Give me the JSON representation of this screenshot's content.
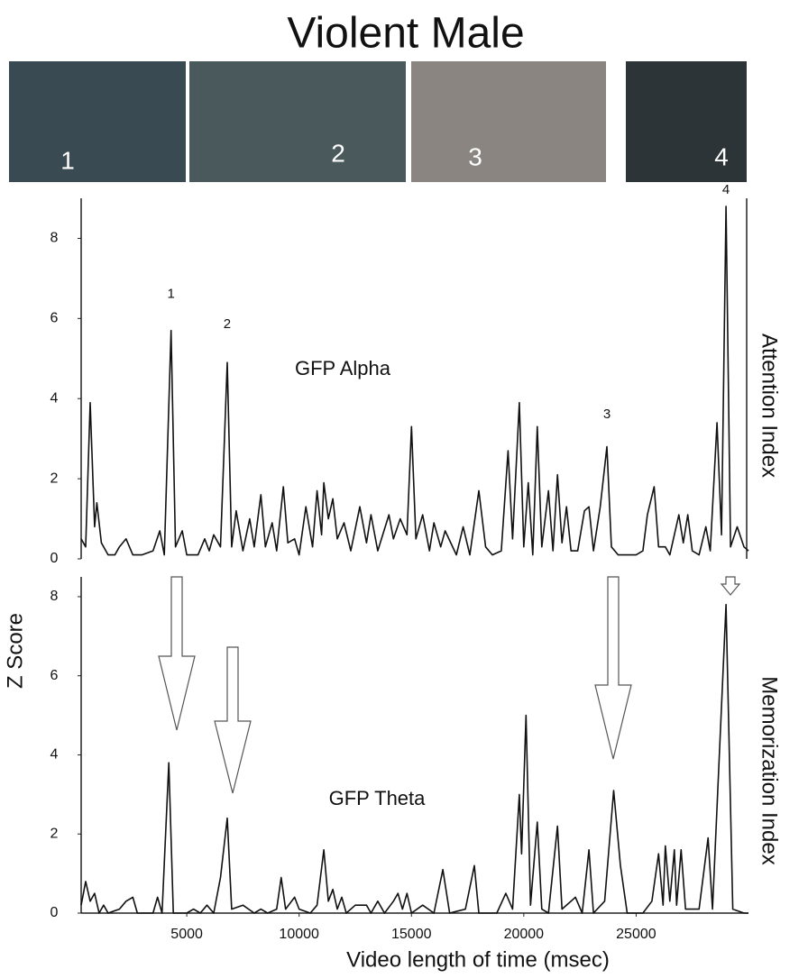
{
  "title": "Violent Male",
  "frames": [
    "1",
    "2",
    "3",
    "4"
  ],
  "ylabel": "Z Score",
  "xlabel": "Video length of time   (msec)",
  "chart_data": [
    {
      "type": "line",
      "side_label": "Attention Index",
      "xlim": [
        300,
        30000
      ],
      "ylim": [
        0,
        9
      ],
      "yticks": [
        0,
        2,
        4,
        6,
        8
      ],
      "x": [
        300,
        500,
        700,
        900,
        1000,
        1200,
        1500,
        1800,
        2000,
        2300,
        2600,
        3000,
        3500,
        3800,
        4000,
        4300,
        4500,
        4800,
        5000,
        5500,
        5800,
        6000,
        6200,
        6500,
        6800,
        7000,
        7200,
        7500,
        7800,
        8000,
        8300,
        8500,
        8800,
        9000,
        9300,
        9500,
        9800,
        10000,
        10300,
        10600,
        10800,
        11000,
        11100,
        11300,
        11500,
        11700,
        12000,
        12300,
        12700,
        13000,
        13200,
        13500,
        14000,
        14200,
        14500,
        14800,
        15000,
        15200,
        15500,
        15800,
        16000,
        16300,
        16500,
        17000,
        17300,
        17600,
        18000,
        18300,
        18600,
        19000,
        19300,
        19500,
        19800,
        20000,
        20200,
        20400,
        20600,
        20800,
        21100,
        21300,
        21500,
        21700,
        21900,
        22100,
        22400,
        22700,
        22900,
        23100,
        23400,
        23700,
        23900,
        24200,
        24500,
        25000,
        25300,
        25500,
        25800,
        26000,
        26300,
        26500,
        26900,
        27100,
        27300,
        27500,
        27800,
        28100,
        28300,
        28600,
        28800,
        29000,
        29200,
        29500,
        29800,
        30000
      ],
      "series": [
        {
          "name": "GFP Alpha",
          "color": "#111111",
          "values": [
            0.5,
            0.3,
            3.9,
            0.8,
            1.4,
            0.4,
            0.1,
            0.1,
            0.3,
            0.5,
            0.1,
            0.1,
            0.2,
            0.7,
            0.1,
            5.7,
            0.3,
            0.7,
            0.1,
            0.1,
            0.5,
            0.2,
            0.6,
            0.3,
            4.9,
            0.3,
            1.2,
            0.2,
            1.0,
            0.3,
            1.6,
            0.3,
            0.9,
            0.2,
            1.8,
            0.4,
            0.5,
            0.1,
            1.3,
            0.3,
            1.7,
            0.6,
            1.9,
            1.0,
            1.5,
            0.5,
            0.9,
            0.2,
            1.3,
            0.4,
            1.1,
            0.2,
            1.1,
            0.5,
            1.0,
            0.6,
            3.3,
            0.5,
            1.1,
            0.2,
            0.9,
            0.3,
            0.7,
            0.1,
            0.8,
            0.1,
            1.7,
            0.3,
            0.1,
            0.2,
            2.7,
            0.5,
            3.9,
            0.3,
            1.9,
            0.1,
            3.3,
            0.3,
            1.7,
            0.2,
            2.1,
            0.4,
            1.3,
            0.2,
            0.2,
            1.2,
            1.3,
            0.2,
            1.3,
            2.8,
            0.3,
            0.1,
            0.1,
            0.1,
            0.2,
            1.1,
            1.8,
            0.3,
            0.3,
            0.1,
            1.1,
            0.4,
            1.1,
            0.2,
            0.1,
            0.8,
            0.2,
            3.4,
            0.6,
            8.8,
            0.3,
            0.8,
            0.3,
            0.2
          ]
        }
      ],
      "annotations": [
        {
          "text": "1",
          "x": 4300,
          "y": 6.6
        },
        {
          "text": "2",
          "x": 6800,
          "y": 5.85
        },
        {
          "text": "3",
          "x": 23700,
          "y": 3.6
        },
        {
          "text": "4",
          "x": 29000,
          "y": 9.2
        }
      ]
    },
    {
      "type": "line",
      "side_label": "Memorization Index",
      "xlim": [
        300,
        30000
      ],
      "ylim": [
        0,
        8.5
      ],
      "yticks": [
        0,
        2,
        4,
        6,
        8
      ],
      "xticks": [
        5000,
        10000,
        15000,
        20000,
        25000
      ],
      "x": [
        300,
        500,
        700,
        900,
        1100,
        1300,
        1500,
        2000,
        2300,
        2600,
        2800,
        3500,
        3700,
        3900,
        4200,
        4400,
        5000,
        5300,
        5600,
        5900,
        6200,
        6500,
        6800,
        7000,
        7500,
        8000,
        8300,
        8600,
        9000,
        9200,
        9400,
        9800,
        10000,
        10500,
        10800,
        11100,
        11300,
        11500,
        11700,
        11900,
        12100,
        12500,
        13000,
        13200,
        13500,
        13800,
        14200,
        14400,
        14600,
        14800,
        15000,
        15500,
        16000,
        16400,
        16700,
        17400,
        17800,
        18000,
        18800,
        19200,
        19500,
        19800,
        19900,
        20100,
        20300,
        20600,
        20800,
        21100,
        21500,
        21700,
        22300,
        22600,
        22900,
        23100,
        23600,
        24000,
        24300,
        24600,
        25300,
        25700,
        26000,
        26200,
        26300,
        26500,
        26700,
        26800,
        27000,
        27200,
        27800,
        28200,
        28400,
        29000,
        29300,
        29800,
        30000
      ],
      "series": [
        {
          "name": "GFP Theta",
          "color": "#111111",
          "values": [
            0.2,
            0.8,
            0.3,
            0.5,
            0,
            0.2,
            0,
            0.1,
            0.3,
            0.4,
            0,
            0,
            0.4,
            0,
            3.8,
            0,
            0,
            0.1,
            0,
            0.2,
            0,
            0.9,
            2.4,
            0.1,
            0.2,
            0,
            0.1,
            0,
            0.1,
            0.9,
            0.1,
            0.4,
            0.1,
            0,
            0.2,
            1.6,
            0.3,
            0.6,
            0.1,
            0.4,
            0,
            0.2,
            0.2,
            0,
            0.3,
            0,
            0.3,
            0.5,
            0.1,
            0.5,
            0,
            0.2,
            0,
            1.1,
            0,
            0.1,
            1.2,
            0,
            0,
            0.5,
            0.1,
            3.0,
            1.5,
            5.0,
            0.2,
            2.3,
            0.1,
            0,
            2.2,
            0.1,
            0.4,
            0,
            1.6,
            0,
            0.3,
            3.1,
            1.2,
            0,
            0,
            0.3,
            1.5,
            0.2,
            1.7,
            0.3,
            1.6,
            0.2,
            1.6,
            0.1,
            0.1,
            1.9,
            0.1,
            7.8,
            0.1,
            0,
            0
          ]
        }
      ]
    }
  ]
}
